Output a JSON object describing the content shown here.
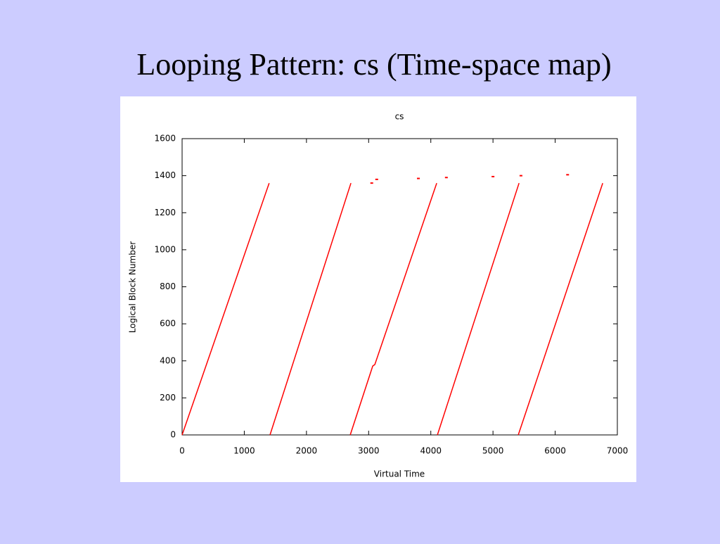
{
  "slide_title": "Looping Pattern: cs (Time-space map)",
  "chart_data": {
    "type": "line",
    "title": "cs",
    "xlabel": "Virtual Time",
    "ylabel": "Logical Block Number",
    "x": [
      0,
      1400,
      null,
      1414,
      2715,
      null,
      2704,
      3066,
      3100,
      4095,
      null,
      4106,
      5419,
      null,
      5407,
      6765
    ],
    "values": [
      0,
      1360,
      null,
      0,
      1360,
      null,
      0,
      372,
      380,
      1360,
      null,
      0,
      1360,
      null,
      0,
      1360
    ],
    "color": "#ff0000",
    "extra_points": {
      "x": [
        3050,
        3130,
        3800,
        4250,
        5000,
        5450,
        6200
      ],
      "values": [
        1360,
        1380,
        1385,
        1390,
        1395,
        1400,
        1405
      ]
    },
    "xlim": [
      0,
      7000
    ],
    "xticks": [
      0,
      1000,
      2000,
      3000,
      4000,
      5000,
      6000,
      7000
    ],
    "ylim": [
      0,
      1600
    ],
    "yticks": [
      0,
      200,
      400,
      600,
      800,
      1000,
      1200,
      1400,
      1600
    ],
    "grid": false
  }
}
